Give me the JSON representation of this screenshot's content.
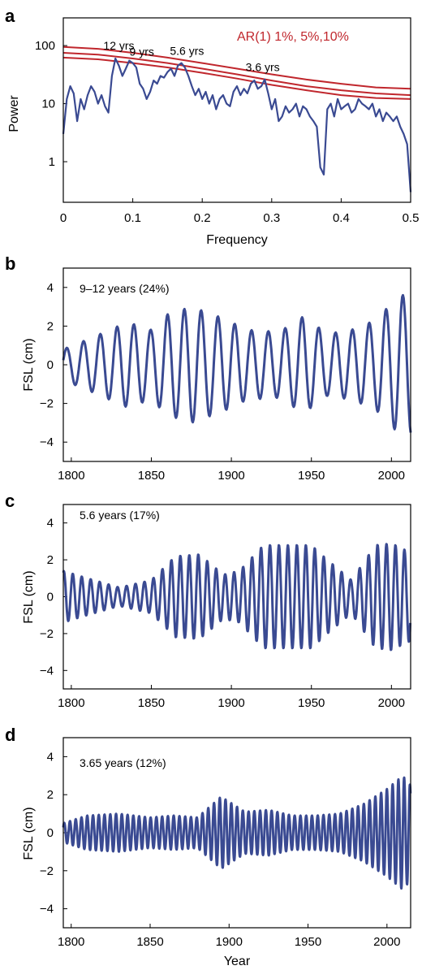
{
  "panels": {
    "a": {
      "letter": "a",
      "xlabel": "Frequency",
      "ylabel": "Power",
      "legend": "AR(1) 1%, 5%,10%",
      "peaks": [
        "12 yrs",
        "9 yrs",
        "5.6 yrs",
        "3.6 yrs"
      ]
    },
    "b": {
      "letter": "b",
      "ylabel": "FSL (cm)",
      "annotation": "9–12 years (24%)"
    },
    "c": {
      "letter": "c",
      "ylabel": "FSL (cm)",
      "annotation": "5.6 years (17%)"
    },
    "d": {
      "letter": "d",
      "ylabel": "FSL (cm)",
      "xlabel": "Year",
      "annotation": "3.65 years (12%)"
    }
  },
  "chart_data": [
    {
      "type": "line",
      "panel": "a",
      "title": "",
      "xlabel": "Frequency",
      "ylabel": "Power",
      "xlim": [
        0,
        0.5
      ],
      "ylim": [
        0.2,
        300
      ],
      "yscale": "log",
      "xticks": [
        "0",
        "0.1",
        "0.2",
        "0.3",
        "0.4",
        "0.5"
      ],
      "yticks": [
        "1",
        "10",
        "100"
      ],
      "series": [
        {
          "name": "",
          "x": [
            0.0,
            0.005,
            0.01,
            0.015,
            0.02,
            0.025,
            0.03,
            0.035,
            0.04,
            0.045,
            0.05,
            0.055,
            0.06,
            0.065,
            0.07,
            0.075,
            0.08,
            0.085,
            0.09,
            0.095,
            0.1,
            0.105,
            0.11,
            0.115,
            0.12,
            0.125,
            0.13,
            0.135,
            0.14,
            0.145,
            0.15,
            0.155,
            0.16,
            0.165,
            0.17,
            0.175,
            0.18,
            0.185,
            0.19,
            0.195,
            0.2,
            0.205,
            0.21,
            0.215,
            0.22,
            0.225,
            0.23,
            0.235,
            0.24,
            0.245,
            0.25,
            0.255,
            0.26,
            0.265,
            0.27,
            0.275,
            0.28,
            0.285,
            0.29,
            0.295,
            0.3,
            0.305,
            0.31,
            0.315,
            0.32,
            0.325,
            0.33,
            0.335,
            0.34,
            0.345,
            0.35,
            0.355,
            0.36,
            0.365,
            0.37,
            0.375,
            0.38,
            0.385,
            0.39,
            0.395,
            0.4,
            0.405,
            0.41,
            0.415,
            0.42,
            0.425,
            0.43,
            0.435,
            0.44,
            0.445,
            0.45,
            0.455,
            0.46,
            0.465,
            0.47,
            0.475,
            0.48,
            0.485,
            0.49,
            0.495,
            0.5
          ],
          "y": [
            3,
            12,
            20,
            15,
            5,
            12,
            8,
            14,
            20,
            16,
            10,
            14,
            9,
            7,
            30,
            60,
            45,
            30,
            40,
            55,
            50,
            42,
            22,
            18,
            12,
            16,
            25,
            22,
            30,
            28,
            35,
            40,
            30,
            45,
            50,
            42,
            30,
            20,
            14,
            18,
            12,
            16,
            10,
            14,
            8,
            12,
            14,
            10,
            9,
            16,
            20,
            14,
            18,
            15,
            22,
            25,
            18,
            20,
            26,
            15,
            8,
            12,
            5,
            6,
            9,
            7,
            8,
            10,
            6,
            9,
            8,
            6,
            5,
            4,
            0.8,
            0.6,
            8,
            10,
            6,
            12,
            8,
            9,
            10,
            7,
            8,
            12,
            10,
            9,
            8,
            10,
            6,
            8,
            5,
            7,
            6,
            5,
            6,
            4,
            3,
            2,
            0.3
          ]
        },
        {
          "name": "AR(1) 1%",
          "x": [
            0,
            0.05,
            0.1,
            0.15,
            0.2,
            0.25,
            0.3,
            0.35,
            0.4,
            0.45,
            0.5
          ],
          "y": [
            95,
            88,
            75,
            62,
            50,
            40,
            32,
            26,
            22,
            19,
            18
          ]
        },
        {
          "name": "AR(1) 5%",
          "x": [
            0,
            0.05,
            0.1,
            0.15,
            0.2,
            0.25,
            0.3,
            0.35,
            0.4,
            0.45,
            0.5
          ],
          "y": [
            75,
            70,
            60,
            50,
            40,
            32,
            25,
            20,
            17,
            15,
            14
          ]
        },
        {
          "name": "AR(1) 10%",
          "x": [
            0,
            0.05,
            0.1,
            0.15,
            0.2,
            0.25,
            0.3,
            0.35,
            0.4,
            0.45,
            0.5
          ],
          "y": [
            62,
            58,
            50,
            42,
            34,
            27,
            21,
            17,
            14,
            12.5,
            12
          ]
        }
      ],
      "annotations": [
        {
          "text": "12 yrs",
          "x": 0.08,
          "y": 70
        },
        {
          "text": "9 yrs",
          "x": 0.113,
          "y": 55
        },
        {
          "text": "5.6 yrs",
          "x": 0.178,
          "y": 57
        },
        {
          "text": "3.6 yrs",
          "x": 0.287,
          "y": 30
        }
      ]
    },
    {
      "type": "line",
      "panel": "b",
      "xlabel": "",
      "ylabel": "FSL (cm)",
      "xlim": [
        1795,
        2012
      ],
      "ylim": [
        -5,
        5
      ],
      "xticks": [
        "1800",
        "1850",
        "1900",
        "1950",
        "2000"
      ],
      "yticks": [
        "-4",
        "-2",
        "0",
        "2",
        "4"
      ],
      "component": {
        "period_years": 10.5,
        "variance_share": "24%"
      },
      "envelope": {
        "year": [
          1795,
          1810,
          1835,
          1850,
          1860,
          1875,
          1895,
          1910,
          1930,
          1945,
          1960,
          1975,
          1990,
          2005,
          2012
        ],
        "amplitude": [
          0.8,
          1.3,
          2.2,
          1.8,
          2.6,
          3.0,
          2.4,
          1.8,
          1.7,
          2.5,
          1.6,
          1.8,
          2.3,
          3.6,
          3.6
        ]
      }
    },
    {
      "type": "line",
      "panel": "c",
      "xlabel": "",
      "ylabel": "FSL (cm)",
      "xlim": [
        1795,
        2012
      ],
      "ylim": [
        -5,
        5
      ],
      "xticks": [
        "1800",
        "1850",
        "1900",
        "1950",
        "2000"
      ],
      "yticks": [
        "-4",
        "-2",
        "0",
        "2",
        "4"
      ],
      "component": {
        "period_years": 5.6,
        "variance_share": "17%"
      },
      "envelope": {
        "year": [
          1795,
          1810,
          1830,
          1850,
          1865,
          1880,
          1895,
          1905,
          1920,
          1935,
          1950,
          1960,
          1975,
          1990,
          2000,
          2012
        ],
        "amplitude": [
          1.4,
          1.0,
          0.5,
          0.9,
          2.2,
          2.3,
          1.2,
          1.4,
          2.8,
          2.8,
          2.8,
          2.0,
          0.9,
          2.8,
          2.9,
          2.4
        ]
      }
    },
    {
      "type": "line",
      "panel": "d",
      "xlabel": "Year",
      "ylabel": "FSL (cm)",
      "xlim": [
        1795,
        2015
      ],
      "ylim": [
        -5,
        5
      ],
      "xticks": [
        "1800",
        "1850",
        "1900",
        "1950",
        "2000"
      ],
      "yticks": [
        "-4",
        "-2",
        "0",
        "2",
        "4"
      ],
      "component": {
        "period_years": 3.65,
        "variance_share": "12%"
      },
      "envelope": {
        "year": [
          1795,
          1810,
          1830,
          1850,
          1865,
          1880,
          1895,
          1910,
          1925,
          1940,
          1955,
          1970,
          1985,
          2000,
          2010,
          2015
        ],
        "amplitude": [
          0.5,
          0.9,
          1.0,
          0.8,
          0.9,
          0.8,
          1.9,
          1.1,
          1.2,
          0.9,
          0.9,
          1.0,
          1.5,
          2.3,
          3.0,
          2.5
        ]
      }
    }
  ]
}
